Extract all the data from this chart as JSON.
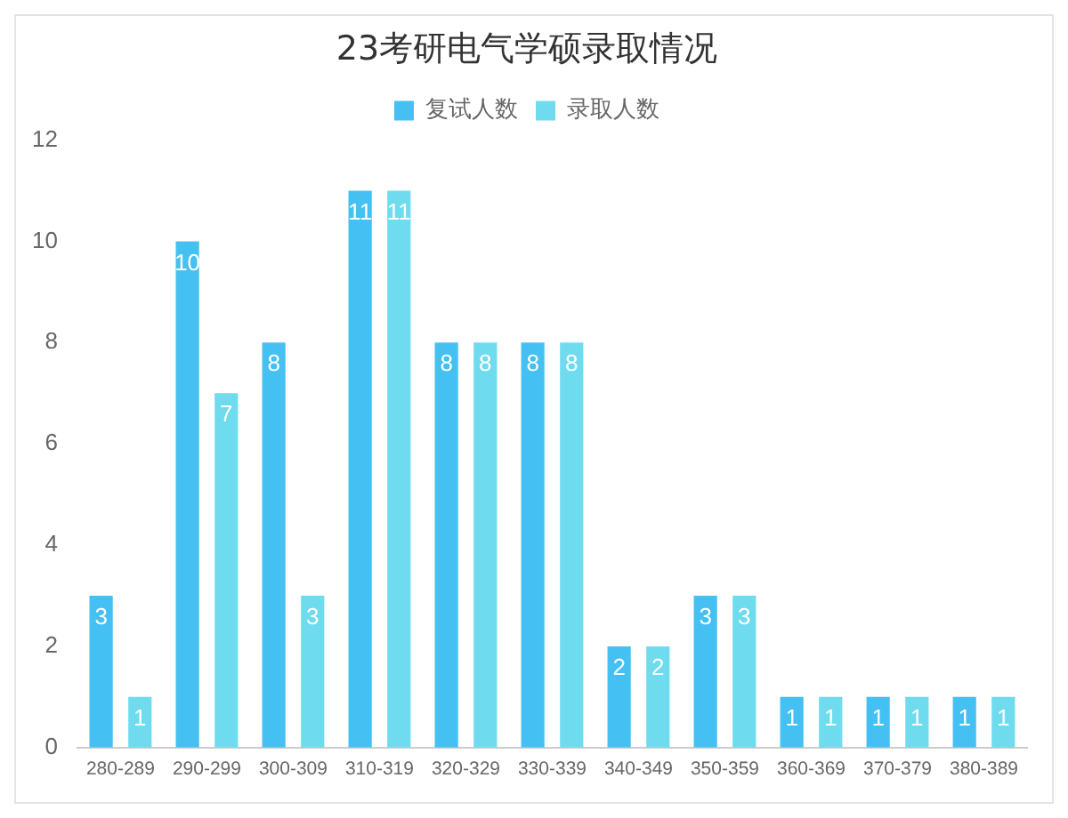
{
  "chart_data": {
    "type": "bar",
    "title": "23考研电气学硕录取情况",
    "categories": [
      "280-289",
      "290-299",
      "300-309",
      "310-319",
      "320-329",
      "330-339",
      "340-349",
      "350-359",
      "360-369",
      "370-379",
      "380-389"
    ],
    "series": [
      {
        "name": "复试人数",
        "color": "#45c0f2",
        "values": [
          3,
          10,
          8,
          11,
          8,
          8,
          2,
          3,
          1,
          1,
          1
        ]
      },
      {
        "name": "录取人数",
        "color": "#6edcee",
        "values": [
          1,
          7,
          3,
          11,
          8,
          8,
          2,
          3,
          1,
          1,
          1
        ]
      }
    ],
    "ylim": [
      0,
      12
    ],
    "yticks": [
      0,
      2,
      4,
      6,
      8,
      10,
      12
    ],
    "grid": false,
    "legend": "top",
    "data_labels": true
  }
}
